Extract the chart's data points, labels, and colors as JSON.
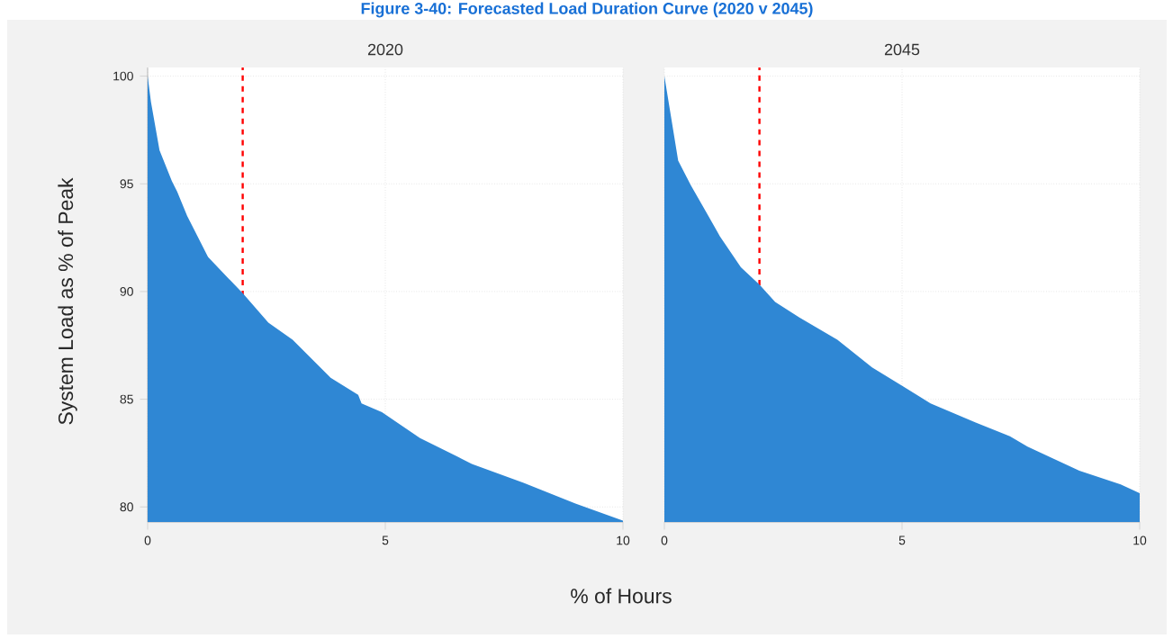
{
  "chart_data": [
    {
      "type": "area",
      "title": "2020",
      "ylabel": "System Load as % of Peak",
      "xlabel": "% of Hours",
      "annotations": [
        "Figure 3-40: Forecasted Load Duration Curve (2020 v 2045)"
      ],
      "x": [
        0,
        0.07,
        0.25,
        0.51,
        0.62,
        0.83,
        1.27,
        2.0,
        2.54,
        3.05,
        3.85,
        4.43,
        4.5,
        4.93,
        5.73,
        6.82,
        7.91,
        9.0,
        10
      ],
      "values": [
        100,
        98.8,
        96.56,
        95.12,
        94.64,
        93.52,
        91.6,
        89.92,
        88.56,
        87.76,
        86.0,
        85.2,
        84.8,
        84.4,
        83.2,
        82.0,
        81.12,
        80.16,
        79.36
      ],
      "color": "#2f87d4",
      "xlim": [
        0,
        10
      ],
      "ylim": [
        79.3,
        100.4
      ],
      "xticks": [
        0,
        5,
        10
      ],
      "yticks": [
        80,
        85,
        90,
        95,
        100
      ],
      "grid": true,
      "ref_lines": [
        {
          "axis": "x",
          "value": 2,
          "color": "#ff0000",
          "line_style": "dashed"
        }
      ]
    },
    {
      "type": "area",
      "title": "2045",
      "x": [
        0,
        0.29,
        0.55,
        0.84,
        1.17,
        1.61,
        2.0,
        2.33,
        2.84,
        3.64,
        4.37,
        5.02,
        5.6,
        6.55,
        7.27,
        7.64,
        8.73,
        9.6,
        10
      ],
      "values": [
        100,
        96.08,
        94.96,
        93.84,
        92.56,
        91.12,
        90.32,
        89.52,
        88.8,
        87.76,
        86.48,
        85.6,
        84.8,
        83.92,
        83.28,
        82.8,
        81.68,
        81.04,
        80.64
      ],
      "color": "#2f87d4",
      "xlim": [
        0,
        10
      ],
      "ylim": [
        79.3,
        100.4
      ],
      "xticks": [
        0,
        5,
        10
      ],
      "yticks": [
        80,
        85,
        90,
        95,
        100
      ],
      "grid": true,
      "tick_labels": "x",
      "ref_lines": [
        {
          "axis": "x",
          "value": 2,
          "color": "#ff0000",
          "line_style": "dashed"
        }
      ]
    }
  ]
}
